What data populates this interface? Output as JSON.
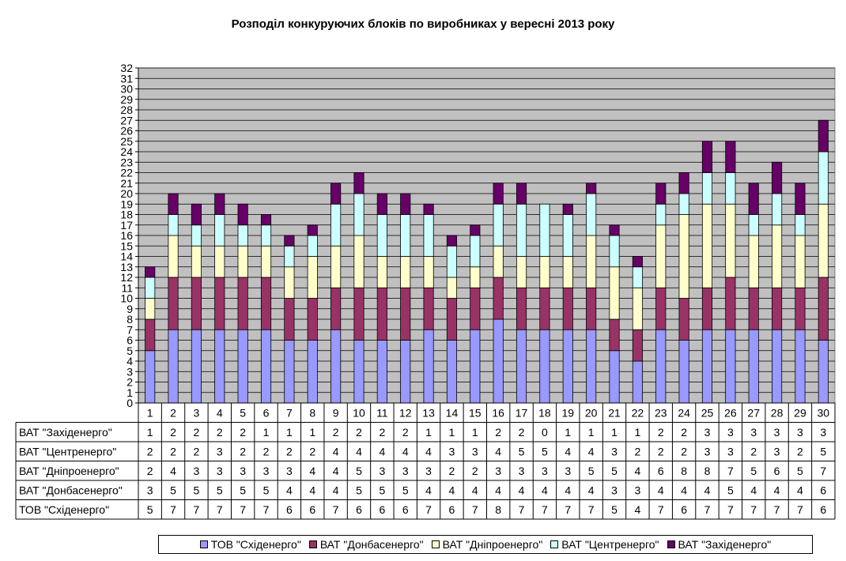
{
  "chart_data": {
    "type": "bar",
    "stacked": true,
    "title": "Розподіл конкуруючих блоків по виробниках у вересні 2013 року",
    "categories": [
      "1",
      "2",
      "3",
      "4",
      "5",
      "6",
      "7",
      "8",
      "9",
      "10",
      "11",
      "12",
      "13",
      "14",
      "15",
      "16",
      "17",
      "18",
      "19",
      "20",
      "21",
      "22",
      "23",
      "24",
      "25",
      "26",
      "27",
      "28",
      "29",
      "30"
    ],
    "series": [
      {
        "name": "ТОВ \"Східенерго\"",
        "color": "#9999ff",
        "values": [
          5,
          7,
          7,
          7,
          7,
          7,
          6,
          6,
          7,
          6,
          6,
          6,
          7,
          6,
          7,
          8,
          7,
          7,
          7,
          7,
          5,
          4,
          7,
          6,
          7,
          7,
          7,
          7,
          7,
          6
        ]
      },
      {
        "name": "ВАТ \"Донбасенерго\"",
        "color": "#993366",
        "values": [
          3,
          5,
          5,
          5,
          5,
          5,
          4,
          4,
          4,
          5,
          5,
          5,
          4,
          4,
          4,
          4,
          4,
          4,
          4,
          4,
          3,
          3,
          4,
          4,
          4,
          5,
          4,
          4,
          4,
          6
        ]
      },
      {
        "name": "ВАТ \"Дніпроенерго\"",
        "color": "#ffffcc",
        "values": [
          2,
          4,
          3,
          3,
          3,
          3,
          3,
          4,
          4,
          5,
          3,
          3,
          3,
          2,
          2,
          3,
          3,
          3,
          3,
          5,
          5,
          4,
          6,
          8,
          8,
          7,
          5,
          6,
          5,
          7
        ]
      },
      {
        "name": "ВАТ \"Центренерго\"",
        "color": "#ccffff",
        "values": [
          2,
          2,
          2,
          3,
          2,
          2,
          2,
          2,
          4,
          4,
          4,
          4,
          4,
          3,
          3,
          4,
          5,
          5,
          4,
          4,
          3,
          2,
          2,
          2,
          3,
          3,
          2,
          3,
          2,
          5
        ]
      },
      {
        "name": "ВАТ \"Західенерго\"",
        "color": "#660066",
        "values": [
          1,
          2,
          2,
          2,
          2,
          1,
          1,
          1,
          2,
          2,
          2,
          2,
          1,
          1,
          1,
          2,
          2,
          0,
          1,
          1,
          1,
          1,
          2,
          2,
          3,
          3,
          3,
          3,
          3,
          3
        ]
      }
    ],
    "ylim": [
      0,
      32
    ],
    "y_ticks": [
      0,
      1,
      2,
      3,
      4,
      5,
      6,
      7,
      8,
      9,
      10,
      11,
      12,
      13,
      14,
      15,
      16,
      17,
      18,
      19,
      20,
      21,
      22,
      23,
      24,
      25,
      26,
      27,
      28,
      29,
      30,
      31,
      32
    ],
    "grid": true,
    "legend_position": "bottom",
    "plot_background": "#c0c0c0",
    "data_table": true,
    "table_row_order": [
      "ВАТ \"Західенерго\"",
      "ВАТ \"Центренерго\"",
      "ВАТ \"Дніпроенерго\"",
      "ВАТ \"Донбасенерго\"",
      "ТОВ \"Східенерго\""
    ]
  }
}
